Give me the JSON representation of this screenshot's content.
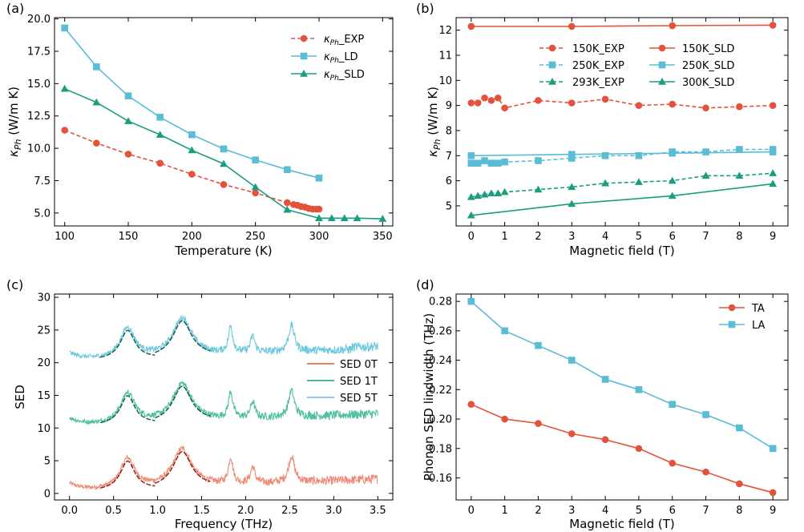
{
  "colors": {
    "red": "#e4523b",
    "blue": "#5bbcd6",
    "green": "#1a9e7f",
    "red_light": "#ee8a75",
    "green_light": "#4fbf9f",
    "blue_light": "#6cc8de",
    "dark_red": "#8b1a0e",
    "dark_green": "#0b5a44"
  },
  "chart_data": [
    {
      "panel": "(a)",
      "type": "line",
      "xlabel": "Temperature (K)",
      "ylabel_main": "κ",
      "ylabel_sub": "Ph",
      "ylabel_unit": " (W/m K)",
      "xlim": [
        92,
        358
      ],
      "ylim": [
        4.0,
        20.1
      ],
      "xticks": [
        100,
        150,
        200,
        250,
        300,
        350
      ],
      "yticks": [
        5.0,
        7.5,
        10.0,
        12.5,
        15.0,
        17.5,
        20.0
      ],
      "series": [
        {
          "name": "κPh_EXP",
          "legend_main": "κ",
          "legend_sub": "Ph",
          "legend_rest": "_EXP",
          "color": "red",
          "marker": "circle",
          "dashed": true,
          "x": [
            100,
            125,
            150,
            175,
            200,
            225,
            250,
            275,
            280,
            283,
            286,
            289,
            292,
            295,
            298,
            300
          ],
          "y": [
            11.4,
            10.4,
            9.55,
            8.85,
            8.0,
            7.2,
            6.55,
            5.8,
            5.65,
            5.6,
            5.5,
            5.45,
            5.35,
            5.3,
            5.3,
            5.3
          ]
        },
        {
          "name": "κPh_LD",
          "legend_main": "κ",
          "legend_sub": "Ph",
          "legend_rest": "_LD",
          "color": "blue",
          "marker": "square",
          "dashed": false,
          "x": [
            100,
            125,
            150,
            175,
            200,
            225,
            250,
            275,
            300
          ],
          "y": [
            19.3,
            16.3,
            14.05,
            12.4,
            11.05,
            9.95,
            9.1,
            8.35,
            7.7
          ]
        },
        {
          "name": "κPh_SLD",
          "legend_main": "κ",
          "legend_sub": "Ph",
          "legend_rest": "_SLD",
          "color": "green",
          "marker": "triangle",
          "dashed": false,
          "x": [
            100,
            125,
            150,
            175,
            200,
            225,
            250,
            275,
            300,
            310,
            320,
            330,
            350
          ],
          "y": [
            14.6,
            13.55,
            12.1,
            11.05,
            9.85,
            8.8,
            7.0,
            5.25,
            4.6,
            4.6,
            4.6,
            4.6,
            4.55
          ]
        }
      ]
    },
    {
      "panel": "(b)",
      "type": "line",
      "xlabel": "Magnetic field (T)",
      "ylabel_main": "κ",
      "ylabel_sub": "Ph",
      "ylabel_unit": " (W/m K)",
      "xlim": [
        -0.45,
        9.45
      ],
      "ylim": [
        4.2,
        12.5
      ],
      "xticks": [
        0,
        1,
        2,
        3,
        4,
        5,
        6,
        7,
        8,
        9
      ],
      "yticks": [
        5,
        6,
        7,
        8,
        9,
        10,
        11,
        12
      ],
      "series": [
        {
          "name": "150K_EXP",
          "color": "red",
          "marker": "circle",
          "dashed": true,
          "x": [
            0,
            0.2,
            0.4,
            0.6,
            0.8,
            1,
            2,
            3,
            4,
            5,
            6,
            7,
            8,
            9
          ],
          "y": [
            9.1,
            9.1,
            9.3,
            9.2,
            9.3,
            8.9,
            9.2,
            9.1,
            9.25,
            9.0,
            9.05,
            8.9,
            8.95,
            9.0
          ]
        },
        {
          "name": "250K_EXP",
          "color": "blue",
          "marker": "square",
          "dashed": true,
          "x": [
            0,
            0.2,
            0.4,
            0.6,
            0.8,
            1,
            2,
            3,
            4,
            5,
            6,
            7,
            8,
            9
          ],
          "y": [
            6.7,
            6.7,
            6.8,
            6.7,
            6.7,
            6.75,
            6.8,
            6.9,
            7.0,
            7.0,
            7.15,
            7.15,
            7.25,
            7.25
          ]
        },
        {
          "name": "293K_EXP",
          "color": "green",
          "marker": "triangle",
          "dashed": true,
          "x": [
            0,
            0.2,
            0.4,
            0.6,
            0.8,
            1,
            2,
            3,
            4,
            5,
            6,
            7,
            8,
            9
          ],
          "y": [
            5.35,
            5.4,
            5.45,
            5.5,
            5.5,
            5.55,
            5.65,
            5.75,
            5.9,
            5.95,
            6.0,
            6.2,
            6.2,
            6.3
          ]
        },
        {
          "name": "150K_SLD",
          "color": "red",
          "marker": "circle",
          "dashed": false,
          "x": [
            0,
            3,
            6,
            9
          ],
          "y": [
            12.15,
            12.15,
            12.18,
            12.2
          ]
        },
        {
          "name": "250K_SLD",
          "color": "blue",
          "marker": "square",
          "dashed": false,
          "x": [
            0,
            3,
            6,
            9
          ],
          "y": [
            7.0,
            7.05,
            7.1,
            7.15
          ]
        },
        {
          "name": "300K_SLD",
          "color": "green",
          "marker": "triangle",
          "dashed": false,
          "x": [
            0,
            3,
            6,
            9
          ],
          "y": [
            4.62,
            5.08,
            5.4,
            5.88
          ]
        }
      ]
    },
    {
      "panel": "(c)",
      "type": "line",
      "xlabel": "Frequency (THz)",
      "ylabel": "SED",
      "xlim": [
        -0.17,
        3.67
      ],
      "ylim": [
        -1.0,
        30.5
      ],
      "xticks": [
        0.0,
        0.5,
        1.0,
        1.5,
        2.0,
        2.5,
        3.0,
        3.5
      ],
      "yticks": [
        0,
        5,
        10,
        15,
        20,
        25,
        30
      ],
      "series": [
        {
          "name": "SED 0T",
          "color": "red_light",
          "legend_color": "red",
          "offset": 0,
          "fit_color": "dark_red"
        },
        {
          "name": "SED 1T",
          "color": "green_light",
          "legend_color": "green",
          "offset": 10,
          "fit_color": "dark_green"
        },
        {
          "name": "SED 5T",
          "color": "blue_light",
          "legend_color": "blue",
          "offset": 20,
          "fit_color": "dark_green"
        }
      ],
      "peaks": [
        {
          "center": 0.66,
          "height": 4.6,
          "width": 0.1
        },
        {
          "center": 1.28,
          "height": 5.8,
          "width": 0.13
        },
        {
          "center": 1.83,
          "height": 4.0,
          "width": 0.03
        },
        {
          "center": 2.08,
          "height": 2.5,
          "width": 0.03
        },
        {
          "center": 2.52,
          "height": 4.0,
          "width": 0.04
        }
      ],
      "fit_ranges": [
        [
          0.35,
          0.97
        ],
        [
          0.97,
          1.6
        ]
      ]
    },
    {
      "panel": "(d)",
      "type": "line",
      "xlabel": "Magnetic field (T)",
      "ylabel": "Phonon SED lindwidth (THz)",
      "xlim": [
        -0.45,
        9.45
      ],
      "ylim": [
        0.145,
        0.285
      ],
      "xticks": [
        0,
        1,
        2,
        3,
        4,
        5,
        6,
        7,
        8,
        9
      ],
      "yticks": [
        0.16,
        0.18,
        0.2,
        0.22,
        0.24,
        0.26,
        0.28
      ],
      "series": [
        {
          "name": "TA",
          "color": "red",
          "marker": "circle",
          "dashed": false,
          "x": [
            0,
            1,
            2,
            3,
            4,
            5,
            6,
            7,
            8,
            9
          ],
          "y": [
            0.21,
            0.2,
            0.197,
            0.19,
            0.186,
            0.18,
            0.17,
            0.164,
            0.156,
            0.15
          ]
        },
        {
          "name": "LA",
          "color": "blue",
          "marker": "square",
          "dashed": false,
          "x": [
            0,
            1,
            2,
            3,
            4,
            5,
            6,
            7,
            8,
            9
          ],
          "y": [
            0.28,
            0.26,
            0.25,
            0.24,
            0.227,
            0.22,
            0.21,
            0.203,
            0.194,
            0.18
          ]
        }
      ]
    }
  ]
}
